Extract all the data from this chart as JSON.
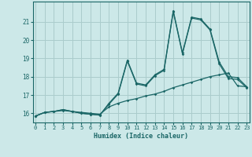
{
  "xlabel": "Humidex (Indice chaleur)",
  "bg_color": "#cce8e8",
  "grid_color": "#aacccc",
  "line_color": "#1a6666",
  "xlim": [
    -0.3,
    23.3
  ],
  "ylim": [
    15.5,
    22.1
  ],
  "yticks": [
    16,
    17,
    18,
    19,
    20,
    21
  ],
  "xticks": [
    0,
    1,
    2,
    3,
    4,
    5,
    6,
    7,
    8,
    9,
    10,
    11,
    12,
    13,
    14,
    15,
    16,
    17,
    18,
    19,
    20,
    21,
    22,
    23
  ],
  "line1_x": [
    0,
    1,
    2,
    3,
    4,
    5,
    6,
    7,
    8,
    9,
    10,
    11,
    12,
    13,
    14,
    15,
    16,
    17,
    18,
    19,
    20,
    21,
    22,
    23
  ],
  "line1_y": [
    15.85,
    16.05,
    16.1,
    16.15,
    16.1,
    16.05,
    16.0,
    15.95,
    16.35,
    16.55,
    16.7,
    16.8,
    16.95,
    17.05,
    17.2,
    17.4,
    17.55,
    17.7,
    17.85,
    18.0,
    18.1,
    18.2,
    17.5,
    17.45
  ],
  "line2_x": [
    0,
    1,
    2,
    3,
    4,
    5,
    6,
    7,
    8,
    9,
    10,
    11,
    12,
    13,
    14,
    15,
    16,
    17,
    18,
    19,
    20,
    21,
    22,
    23
  ],
  "line2_y": [
    15.85,
    16.05,
    16.1,
    16.2,
    16.1,
    16.0,
    15.95,
    15.9,
    16.55,
    17.1,
    18.9,
    17.65,
    17.55,
    18.1,
    18.4,
    21.6,
    19.3,
    21.25,
    21.15,
    20.6,
    18.8,
    18.0,
    17.95,
    17.45
  ],
  "line3_x": [
    0,
    1,
    2,
    3,
    4,
    5,
    6,
    7,
    8,
    9,
    10,
    11,
    12,
    13,
    14,
    15,
    16,
    17,
    18,
    19,
    20,
    21,
    22,
    23
  ],
  "line3_y": [
    15.85,
    16.05,
    16.1,
    16.2,
    16.1,
    16.0,
    15.95,
    15.9,
    16.5,
    17.05,
    18.85,
    17.6,
    17.5,
    18.05,
    18.35,
    21.55,
    19.25,
    21.2,
    21.1,
    20.55,
    18.7,
    17.9,
    17.85,
    17.4
  ]
}
